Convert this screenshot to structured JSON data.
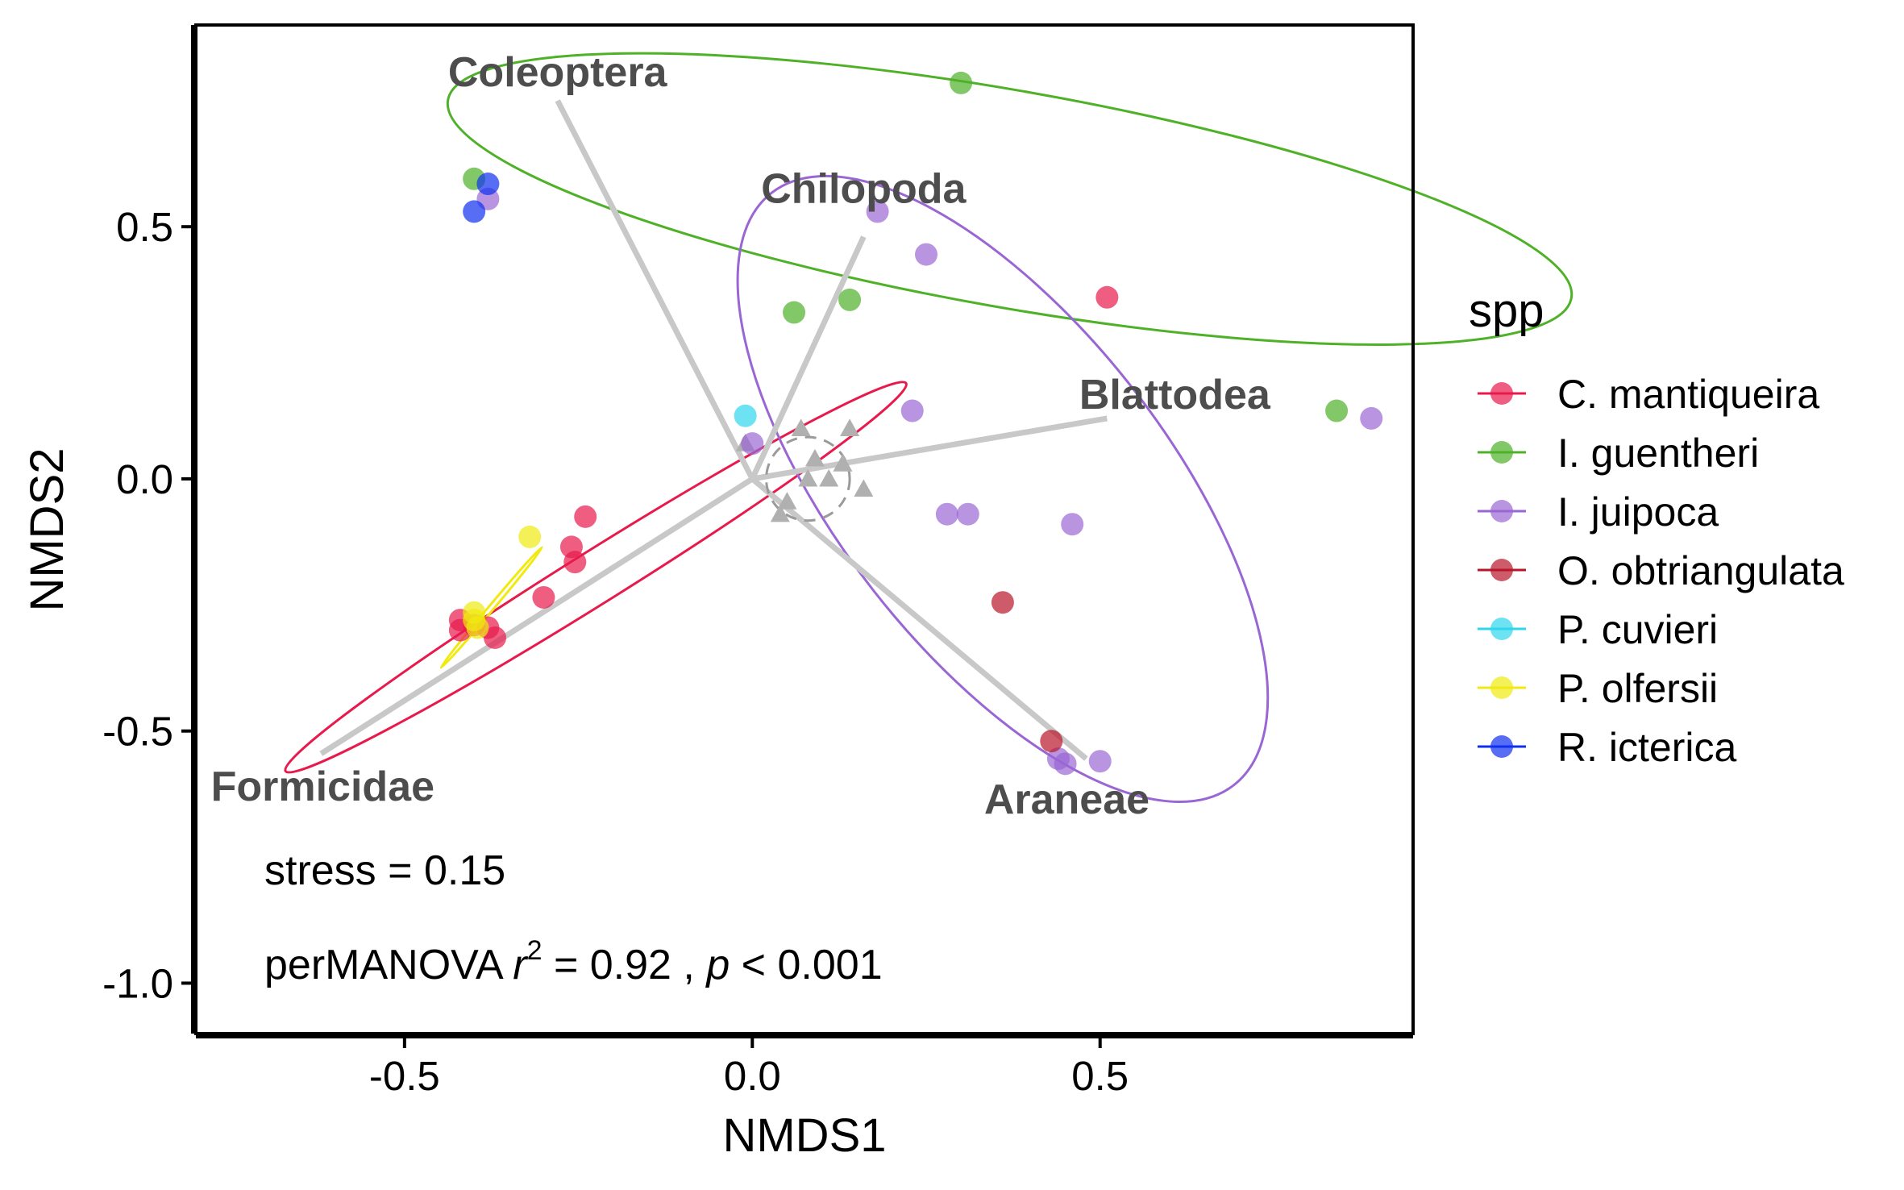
{
  "chart_data": {
    "type": "scatter",
    "xlabel": "NMDS1",
    "ylabel": "NMDS2",
    "xlim": [
      -0.8,
      0.95
    ],
    "ylim": [
      -1.1,
      0.9
    ],
    "xticks": [
      -0.5,
      0.0,
      0.5
    ],
    "yticks": [
      -1.0,
      -0.5,
      0.0,
      0.5
    ],
    "xtick_labels": [
      "-0.5",
      "0.0",
      "0.5"
    ],
    "ytick_labels": [
      "-1.0",
      "-0.5",
      "0.0",
      "0.5"
    ],
    "grid": false,
    "legend": {
      "title": "spp",
      "placement": "right"
    },
    "series": [
      {
        "name": "C. mantiqueira",
        "color": "#e8194b",
        "points": [
          [
            -0.24,
            -0.075
          ],
          [
            -0.26,
            -0.135
          ],
          [
            -0.255,
            -0.165
          ],
          [
            -0.3,
            -0.235
          ],
          [
            -0.42,
            -0.28
          ],
          [
            -0.4,
            -0.29
          ],
          [
            -0.42,
            -0.3
          ],
          [
            -0.38,
            -0.295
          ],
          [
            -0.37,
            -0.315
          ],
          [
            0.51,
            0.36
          ]
        ],
        "ellipse": {
          "cx": -0.225,
          "cy": -0.195,
          "rx": 0.526,
          "ry": 0.052,
          "angle_deg": 32
        }
      },
      {
        "name": "I. guentheri",
        "color": "#4fb128",
        "points": [
          [
            0.3,
            0.785
          ],
          [
            -0.4,
            0.595
          ],
          [
            0.06,
            0.33
          ],
          [
            0.14,
            0.355
          ],
          [
            0.84,
            0.135
          ]
        ],
        "ellipse": {
          "cx": 0.37,
          "cy": 0.555,
          "rx": 0.82,
          "ry": 0.215,
          "angle_deg": -10
        }
      },
      {
        "name": "I. juipoca",
        "color": "#9a66d4",
        "points": [
          [
            -0.38,
            0.555
          ],
          [
            0.18,
            0.53
          ],
          [
            0.25,
            0.445
          ],
          [
            0.23,
            0.135
          ],
          [
            0.0,
            0.07
          ],
          [
            0.28,
            -0.07
          ],
          [
            0.31,
            -0.07
          ],
          [
            0.46,
            -0.09
          ],
          [
            0.44,
            -0.555
          ],
          [
            0.45,
            -0.565
          ],
          [
            0.5,
            -0.56
          ],
          [
            0.89,
            0.12
          ]
        ],
        "ellipse": {
          "cx": 0.36,
          "cy": -0.02,
          "rx": 0.54,
          "ry": 0.326,
          "angle_deg": -52
        }
      },
      {
        "name": "O. obtriangulata",
        "color": "#b8152a",
        "points": [
          [
            0.36,
            -0.245
          ],
          [
            0.43,
            -0.52
          ]
        ]
      },
      {
        "name": "P. cuvieri",
        "color": "#2dd6ec",
        "points": [
          [
            -0.01,
            0.125
          ]
        ]
      },
      {
        "name": "P. olfersii",
        "color": "#f0ea11",
        "points": [
          [
            -0.32,
            -0.115
          ],
          [
            -0.4,
            -0.265
          ],
          [
            -0.4,
            -0.28
          ],
          [
            -0.395,
            -0.295
          ]
        ],
        "ellipse": {
          "cx": -0.375,
          "cy": -0.255,
          "rx": 0.113,
          "ry": 0.005,
          "angle_deg": 50
        }
      },
      {
        "name": "R. icterica",
        "color": "#1030f0",
        "points": [
          [
            -0.38,
            0.585
          ],
          [
            -0.4,
            0.53
          ]
        ]
      }
    ],
    "species_points": [
      [
        0.07,
        0.1
      ],
      [
        0.14,
        0.1
      ],
      [
        -0.01,
        0.07
      ],
      [
        0.09,
        0.04
      ],
      [
        0.13,
        0.03
      ],
      [
        0.08,
        0.0
      ],
      [
        0.11,
        0.0
      ],
      [
        0.16,
        -0.02
      ],
      [
        0.05,
        -0.045
      ],
      [
        0.04,
        -0.07
      ]
    ],
    "origin_circle": {
      "cx": 0.08,
      "cy": 0.0,
      "r": 0.06
    },
    "vectors": [
      {
        "label": "Coleoptera",
        "x": -0.28,
        "y": 0.75
      },
      {
        "label": "Chilopoda",
        "x": 0.16,
        "y": 0.48
      },
      {
        "label": "Blattodea",
        "x": 0.51,
        "y": 0.12
      },
      {
        "label": "Formicidae",
        "x": -0.62,
        "y": -0.545
      },
      {
        "label": "Araneae",
        "x": 0.48,
        "y": -0.555
      }
    ],
    "vector_origin": [
      0.0,
      0.0
    ],
    "annotations": {
      "stress": "stress = 0.15",
      "permanova_prefix": "perMANOVA ",
      "permanova_r": "r",
      "permanova_sup": "2",
      "permanova_mid": " = 0.92 , ",
      "permanova_p": "p",
      "permanova_end": " < 0.001"
    }
  }
}
